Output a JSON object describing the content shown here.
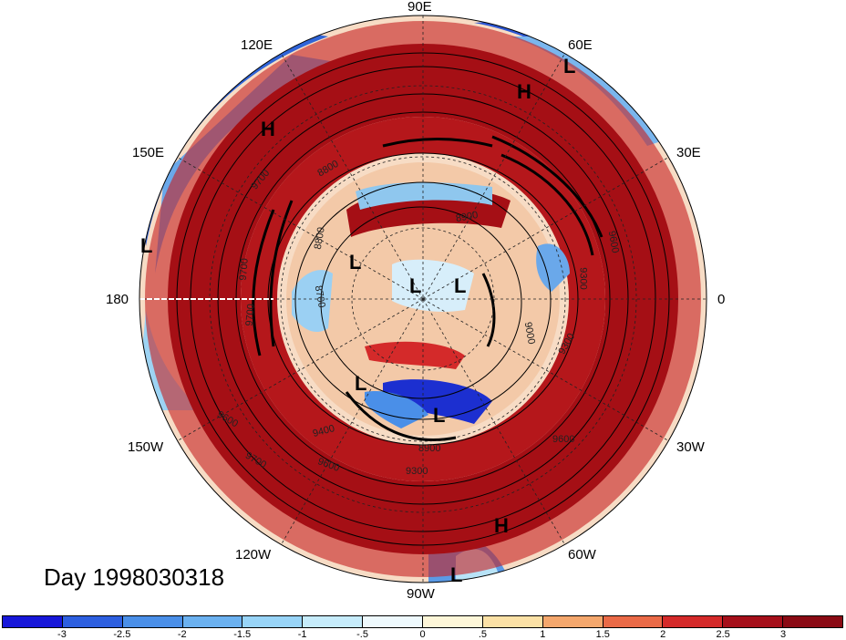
{
  "map": {
    "projection": "north polar stereographic",
    "longitude_labels": [
      {
        "text": "90E",
        "lon": 90
      },
      {
        "text": "60E",
        "lon": 60
      },
      {
        "text": "30E",
        "lon": 30
      },
      {
        "text": "0",
        "lon": 0
      },
      {
        "text": "30W",
        "lon": -30
      },
      {
        "text": "60W",
        "lon": -60
      },
      {
        "text": "90W",
        "lon": -90
      },
      {
        "text": "120W",
        "lon": -120
      },
      {
        "text": "150W",
        "lon": -150
      },
      {
        "text": "180",
        "lon": 180
      },
      {
        "text": "150E",
        "lon": 150
      },
      {
        "text": "120E",
        "lon": 120
      }
    ],
    "pressure_centers": [
      {
        "text": "L"
      },
      {
        "text": "H"
      },
      {
        "text": "H"
      },
      {
        "text": "L"
      },
      {
        "text": "L"
      },
      {
        "text": "L"
      },
      {
        "text": "L"
      },
      {
        "text": "L"
      },
      {
        "text": "L"
      },
      {
        "text": "H"
      },
      {
        "text": "L"
      }
    ],
    "contour_labels": [
      "9700",
      "8800",
      "8900",
      "9600",
      "8800",
      "9700",
      "9300",
      "9000",
      "8700",
      "9300",
      "9600",
      "9600",
      "9700",
      "9400",
      "8900",
      "9300",
      "9600",
      "9700"
    ],
    "colors": {
      "deep_red": "#a50f15",
      "red": "#de2d26",
      "orange": "#f4a582",
      "light_blue": "#b3e5f5",
      "blue": "#4292c6",
      "deep_blue": "#1c2fd0"
    }
  },
  "title": "Day 1998030318",
  "colorbar": {
    "ticks": [
      "-3",
      "-2.5",
      "-2",
      "-1.5",
      "-1",
      "-.5",
      "0",
      ".5",
      "1",
      "1.5",
      "2",
      "2.5",
      "3"
    ],
    "colors": [
      "#1717d9",
      "#2d5fe0",
      "#4a8fe8",
      "#6bb1f0",
      "#98d4f7",
      "#c6ecfb",
      "#eef9fd",
      "#fdf6d8",
      "#fbe1a6",
      "#f4a76d",
      "#ea6a47",
      "#d42a2a",
      "#a50f1a",
      "#8a0a14"
    ]
  }
}
